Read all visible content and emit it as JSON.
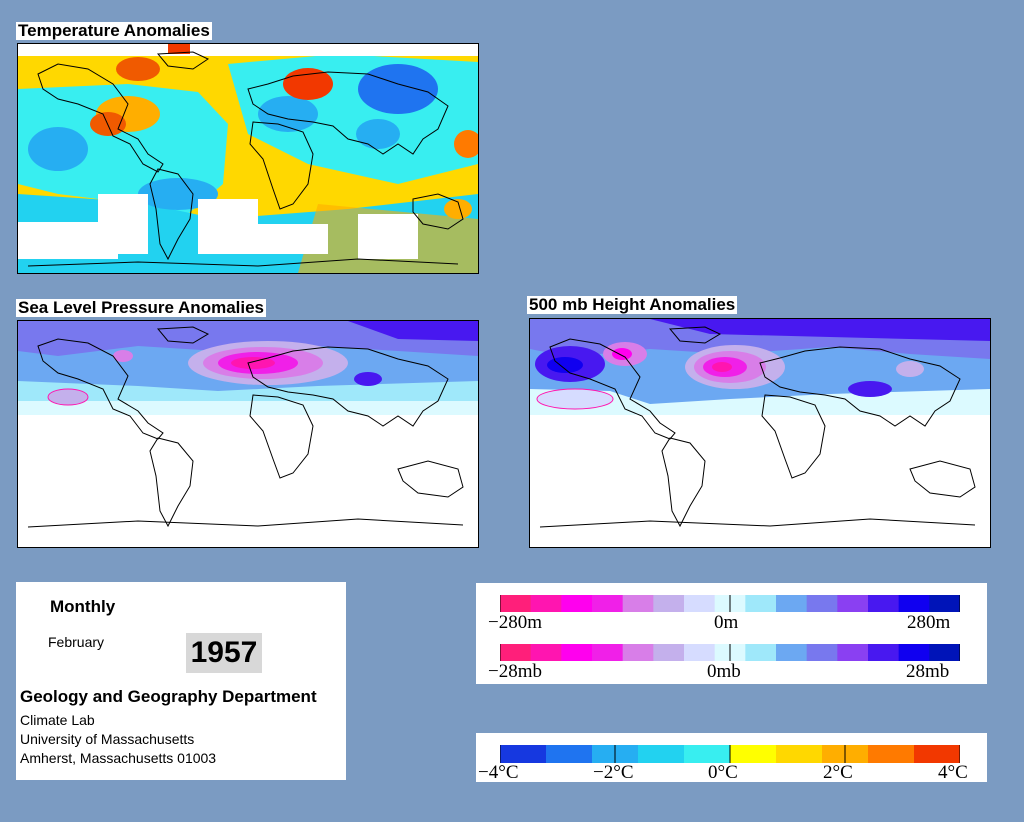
{
  "maps": {
    "temperature_title": "Temperature Anomalies",
    "slp_title": "Sea Level Pressure Anomalies",
    "height_title": "500 mb Height Anomalies"
  },
  "info": {
    "period": "Monthly",
    "month": "February",
    "year": "1957",
    "department": "Geology and Geography Department",
    "lab": "Climate Lab",
    "university": "University of Massachusetts",
    "address": "Amherst, Massachusetts 01003"
  },
  "legend_height": {
    "left": "−280m",
    "center": "0m",
    "right": "280m",
    "colors": [
      "#ff1f7a",
      "#ff15b0",
      "#ff00ee",
      "#f020e8",
      "#d87ee8",
      "#c4b0ec",
      "#d6dcff",
      "#dcfaff",
      "#9fe8fa",
      "#6ca8f2",
      "#7878ee",
      "#8a40f2",
      "#4818f0",
      "#1000f0",
      "#0014b8"
    ]
  },
  "legend_pressure": {
    "left": "−28mb",
    "center": "0mb",
    "right": "28mb",
    "colors": [
      "#ff1f7a",
      "#ff15b0",
      "#ff00ee",
      "#f020e8",
      "#d87ee8",
      "#c4b0ec",
      "#d6dcff",
      "#dcfaff",
      "#9fe8fa",
      "#6ca8f2",
      "#7878ee",
      "#8a40f2",
      "#4818f0",
      "#1000f0",
      "#0014b8"
    ]
  },
  "legend_temperature": {
    "labels": [
      "−4°C",
      "−2°C",
      "0°C",
      "2°C",
      "4°C"
    ],
    "colors": [
      "#1638e0",
      "#1f74f0",
      "#26aef2",
      "#22d2f0",
      "#38eef0",
      "#ffff00",
      "#ffd800",
      "#ffae00",
      "#ff7a00",
      "#f23800"
    ]
  },
  "colors": {
    "background": "#7b9bc2",
    "warm_anomaly": "#f05a00",
    "cold_anomaly": "#1f74f0",
    "high_anomaly": "#e866d8",
    "low_anomaly": "#5a40e0"
  }
}
